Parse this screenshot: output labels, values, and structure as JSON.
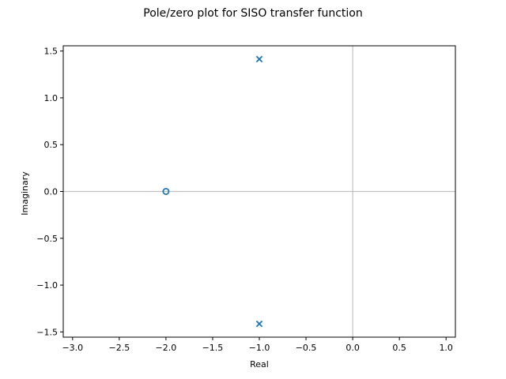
{
  "chart_data": {
    "type": "scatter",
    "title": "Pole/zero plot for SISO transfer function",
    "xlabel": "Real",
    "ylabel": "Imaginary",
    "xlim": [
      -3.1,
      1.1
    ],
    "ylim": [
      -1.556,
      1.556
    ],
    "xticks": [
      -3.0,
      -2.5,
      -2.0,
      -1.5,
      -1.0,
      -0.5,
      0.0,
      0.5,
      1.0
    ],
    "xtick_labels": [
      "−3.0",
      "−2.5",
      "−2.0",
      "−1.5",
      "−1.0",
      "−0.5",
      "0.0",
      "0.5",
      "1.0"
    ],
    "yticks": [
      1.5,
      1.0,
      0.5,
      0.0,
      -0.5,
      -1.0,
      -1.5
    ],
    "ytick_labels": [
      "1.5",
      "1.0",
      "0.5",
      "0.0",
      "−0.5",
      "−1.0",
      "−1.5"
    ],
    "grid": false,
    "reference_lines": {
      "x": 0,
      "y": 0,
      "color": "#c0c0c0"
    },
    "poles": [
      {
        "re": -1.0,
        "im": 1.414
      },
      {
        "re": -1.0,
        "im": -1.414
      }
    ],
    "zeros": [
      {
        "re": -2.0,
        "im": 0.0
      }
    ],
    "marker_color": "#1f77b4"
  }
}
